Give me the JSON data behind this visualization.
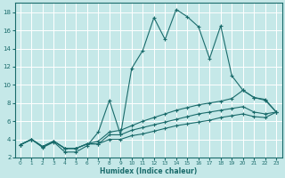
{
  "xlabel": "Humidex (Indice chaleur)",
  "bg_color": "#c5e8e8",
  "grid_color": "#ffffff",
  "line_color": "#1a6b6b",
  "xlim": [
    -0.5,
    23.5
  ],
  "ylim": [
    2,
    19
  ],
  "xticks": [
    0,
    1,
    2,
    3,
    4,
    5,
    6,
    7,
    8,
    9,
    10,
    11,
    12,
    13,
    14,
    15,
    16,
    17,
    18,
    19,
    20,
    21,
    22,
    23
  ],
  "yticks": [
    2,
    4,
    6,
    8,
    10,
    12,
    14,
    16,
    18
  ],
  "curve1_x": [
    0,
    1,
    2,
    3,
    4,
    5,
    6,
    7,
    8,
    9,
    10,
    11,
    12,
    13,
    14,
    15,
    16,
    17,
    18,
    19,
    20,
    21,
    22,
    23
  ],
  "curve1_y": [
    3.4,
    4.0,
    3.1,
    3.7,
    2.6,
    2.6,
    3.3,
    4.8,
    8.3,
    4.5,
    11.8,
    13.8,
    17.4,
    15.0,
    18.3,
    17.5,
    16.4,
    12.9,
    16.5,
    11.0,
    9.4,
    8.6,
    8.4,
    7.0
  ],
  "curve2_x": [
    0,
    1,
    2,
    3,
    4,
    5,
    6,
    7,
    8,
    9,
    10,
    11,
    12,
    13,
    14,
    15,
    16,
    17,
    18,
    19,
    20,
    21,
    22,
    23
  ],
  "curve2_y": [
    3.4,
    4.0,
    3.2,
    3.8,
    3.0,
    3.0,
    3.5,
    3.8,
    4.8,
    5.0,
    5.5,
    6.0,
    6.4,
    6.8,
    7.2,
    7.5,
    7.8,
    8.0,
    8.2,
    8.5,
    9.4,
    8.6,
    8.3,
    7.0
  ],
  "curve3_x": [
    0,
    1,
    2,
    3,
    4,
    5,
    6,
    7,
    8,
    9,
    10,
    11,
    12,
    13,
    14,
    15,
    16,
    17,
    18,
    19,
    20,
    21,
    22,
    23
  ],
  "curve3_y": [
    3.4,
    4.0,
    3.2,
    3.8,
    3.0,
    3.0,
    3.5,
    3.5,
    4.5,
    4.5,
    5.0,
    5.3,
    5.6,
    5.9,
    6.2,
    6.5,
    6.8,
    7.0,
    7.2,
    7.4,
    7.6,
    7.0,
    6.8,
    7.0
  ],
  "curve4_x": [
    0,
    1,
    2,
    3,
    4,
    5,
    6,
    7,
    8,
    9,
    10,
    11,
    12,
    13,
    14,
    15,
    16,
    17,
    18,
    19,
    20,
    21,
    22,
    23
  ],
  "curve4_y": [
    3.4,
    4.0,
    3.2,
    3.8,
    3.0,
    3.0,
    3.5,
    3.5,
    4.0,
    4.0,
    4.4,
    4.6,
    4.9,
    5.2,
    5.5,
    5.7,
    5.9,
    6.1,
    6.4,
    6.6,
    6.8,
    6.5,
    6.4,
    7.0
  ]
}
